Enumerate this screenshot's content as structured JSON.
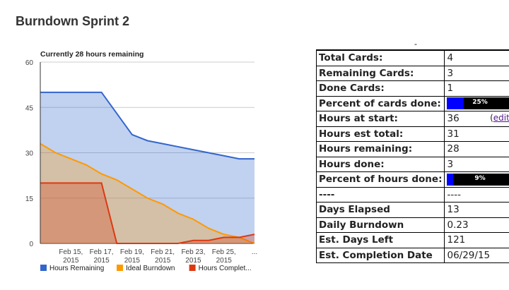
{
  "page": {
    "title": "Burndown Sprint 2"
  },
  "chart_data": {
    "type": "area",
    "title": "Currently 28 hours remaining",
    "ylim": [
      0,
      60
    ],
    "yticks": [
      0,
      15,
      30,
      45,
      60
    ],
    "x_dates": [
      "2015-02-13",
      "2015-02-14",
      "2015-02-15",
      "2015-02-16",
      "2015-02-17",
      "2015-02-18",
      "2015-02-19",
      "2015-02-20",
      "2015-02-21",
      "2015-02-22",
      "2015-02-23",
      "2015-02-24",
      "2015-02-25",
      "2015-02-26",
      "2015-02-27"
    ],
    "xtick_labels": [
      {
        "date": "2015-02-15",
        "line1": "Feb 15,",
        "line2": "2015"
      },
      {
        "date": "2015-02-17",
        "line1": "Feb 17,",
        "line2": "2015"
      },
      {
        "date": "2015-02-19",
        "line1": "Feb 19,",
        "line2": "2015"
      },
      {
        "date": "2015-02-21",
        "line1": "Feb 21,",
        "line2": "2015"
      },
      {
        "date": "2015-02-23",
        "line1": "Feb 23,",
        "line2": "2015"
      },
      {
        "date": "2015-02-25",
        "line1": "Feb 25,",
        "line2": "2015"
      },
      {
        "date": "2015-02-27",
        "line1": "...",
        "line2": ""
      }
    ],
    "series": [
      {
        "name": "Hours Remaining",
        "legend_label": "Hours Remaining",
        "color": "#3366cc",
        "values": [
          50,
          50,
          50,
          50,
          50,
          43,
          36,
          34,
          33,
          32,
          31,
          30,
          29,
          28,
          28
        ]
      },
      {
        "name": "Ideal Burndown",
        "legend_label": "Ideal Burndown",
        "color": "#ff9900",
        "values": [
          33,
          30,
          28,
          26,
          23,
          21,
          18,
          15,
          13,
          10,
          8,
          5,
          3,
          2,
          0
        ]
      },
      {
        "name": "Hours Completed",
        "legend_label": "Hours Complet...",
        "color": "#dc3912",
        "values": [
          20,
          20,
          20,
          20,
          20,
          0,
          0,
          0,
          0,
          0,
          1,
          1,
          2,
          2,
          3
        ]
      }
    ],
    "legend_position": "bottom",
    "grid": true
  },
  "stats": {
    "rows": [
      {
        "label": "Total Cards:",
        "value": "4"
      },
      {
        "label": "Remaining Cards:",
        "value": "3"
      },
      {
        "label": "Done Cards:",
        "value": "1"
      },
      {
        "label": "Percent of cards done:",
        "percent": 0.25,
        "percent_text": "25%"
      },
      {
        "label": "Hours at start:",
        "value": "36",
        "link": "edit"
      },
      {
        "label": "Hours est total:",
        "value": "31"
      },
      {
        "label": "Hours remaining:",
        "value": "28"
      },
      {
        "label": "Hours done:",
        "value": "3"
      },
      {
        "label": "Percent of hours done:",
        "percent": 0.09,
        "percent_text": "9%"
      },
      {
        "label": "----",
        "value": "----"
      },
      {
        "label": "Days Elapsed",
        "value": "13"
      },
      {
        "label": "Daily Burndown",
        "value": "0.23"
      },
      {
        "label": "Est. Days Left",
        "value": "121"
      },
      {
        "label": "Est. Completion Date",
        "value": "06/29/15"
      }
    ]
  }
}
